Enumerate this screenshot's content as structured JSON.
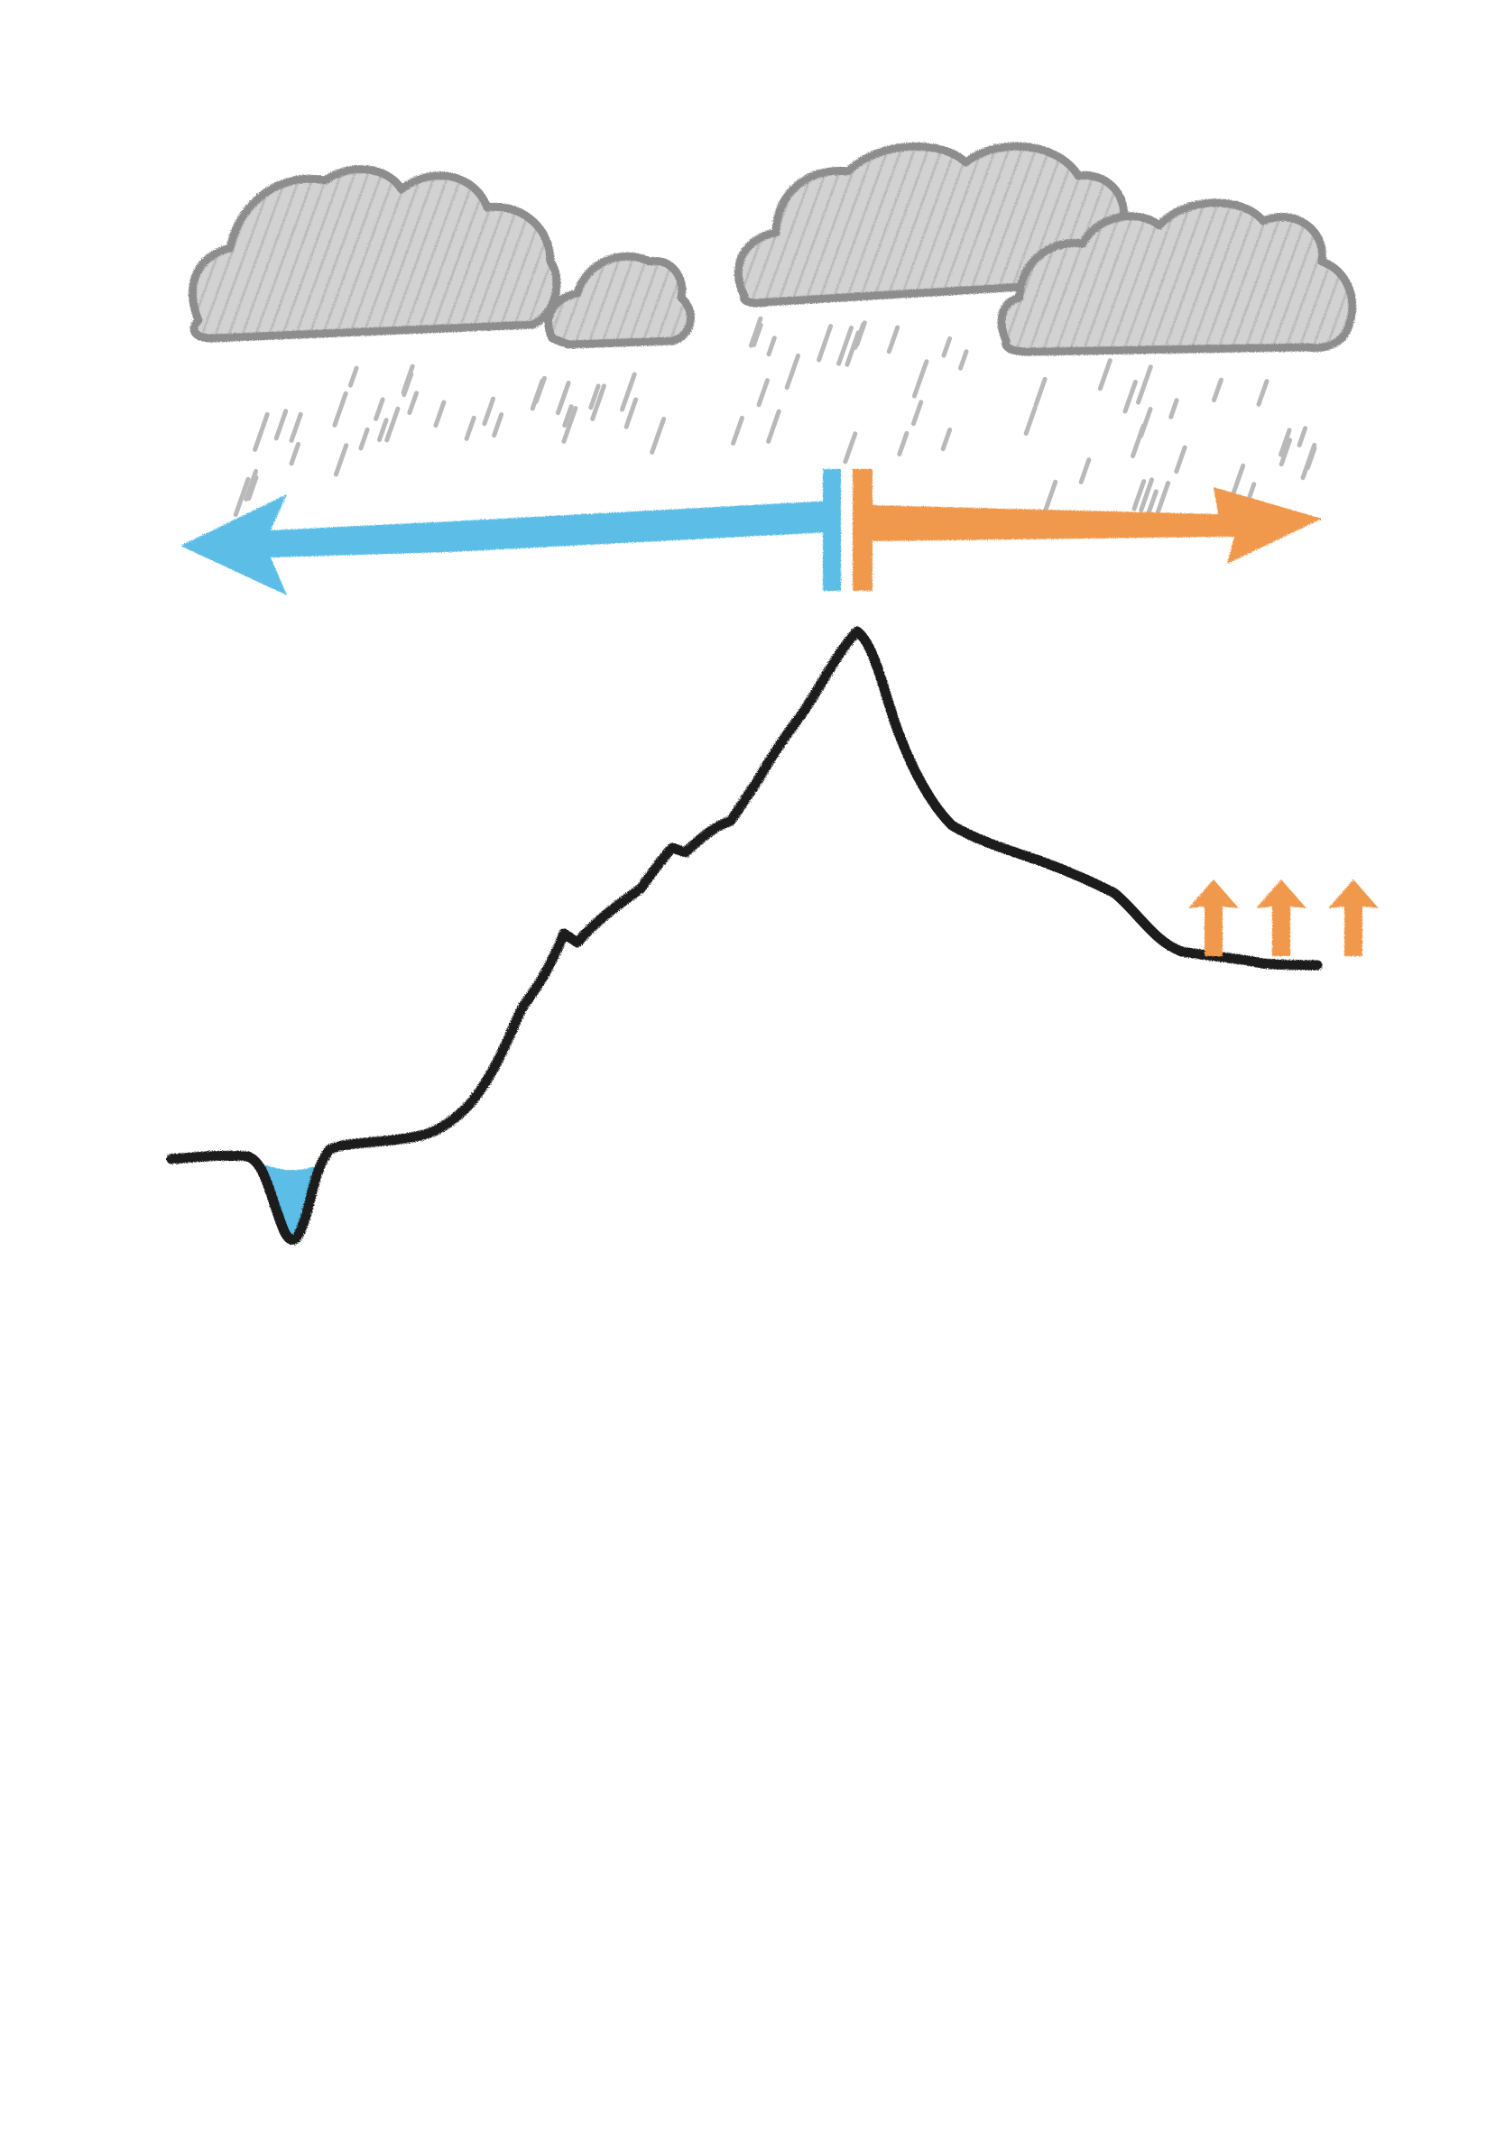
{
  "colors": {
    "background": "#ffffff",
    "cloud_outline": "#8d8d8d",
    "cloud_fill": "#d2d2d2",
    "rain": "#b9b9b9",
    "windward_arrow": "#5bbde6",
    "leeward_arrow": "#f0994e",
    "terrain": "#1a1a1a",
    "lake": "#5bbde6"
  },
  "icons": {
    "clouds": "rain-cloud-icon",
    "left_arrow": "arrow-left-icon",
    "right_arrow": "arrow-right-icon",
    "rising_air": "arrow-up-icon",
    "lake": "water-pool-icon"
  },
  "elements": {
    "cloud_count": 4,
    "rising_air_arrow_count": 3
  }
}
